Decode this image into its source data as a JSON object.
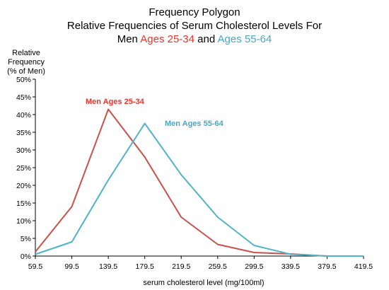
{
  "titles": {
    "line1": "Frequency Polygon",
    "line2": "Relative Frequencies of Serum Cholesterol Levels For",
    "line3_men": "Men ",
    "line3_group1": "Ages 25-34",
    "line3_and": " and ",
    "line3_group2": "Ages 55-64"
  },
  "colors": {
    "series1": "#c9514a",
    "series2": "#4fb3c9",
    "series1_text": "#e8352b",
    "series2_text": "#4aa7c2"
  },
  "chart_data": {
    "type": "line",
    "title": "Frequency Polygon Relative Frequencies of Serum Cholesterol Levels For Men Ages 25-34 and Ages 55-64",
    "xlabel": "serum cholesterol level (mg/100ml)",
    "ylabel_lines": [
      "Relative",
      "Frequency",
      "(% of Men)"
    ],
    "x": [
      59.5,
      99.5,
      139.5,
      179.5,
      219.5,
      259.5,
      299.5,
      339.5,
      379.5,
      419.5
    ],
    "x_tick_labels": [
      "59.5",
      "99.5",
      "139.5",
      "179.5",
      "219.5",
      "259.5",
      "299.5",
      "339.5",
      "379.5",
      "419.5"
    ],
    "ylim": [
      0,
      50
    ],
    "y_ticks": [
      0,
      5,
      10,
      15,
      20,
      25,
      30,
      35,
      40,
      45,
      50
    ],
    "y_tick_labels": [
      "0%",
      "5%",
      "10%",
      "15%",
      "20%",
      "25%",
      "30%",
      "35%",
      "40%",
      "45%",
      "50%"
    ],
    "grid": false,
    "series": [
      {
        "name": "Men Ages 25-34",
        "values": [
          1.2,
          14,
          41.5,
          28,
          11,
          3.3,
          1,
          0.6,
          0,
          0
        ]
      },
      {
        "name": "Men Ages 55-64",
        "values": [
          0.5,
          4,
          21.5,
          37.5,
          23,
          11,
          3,
          0.5,
          0,
          0
        ]
      }
    ]
  }
}
